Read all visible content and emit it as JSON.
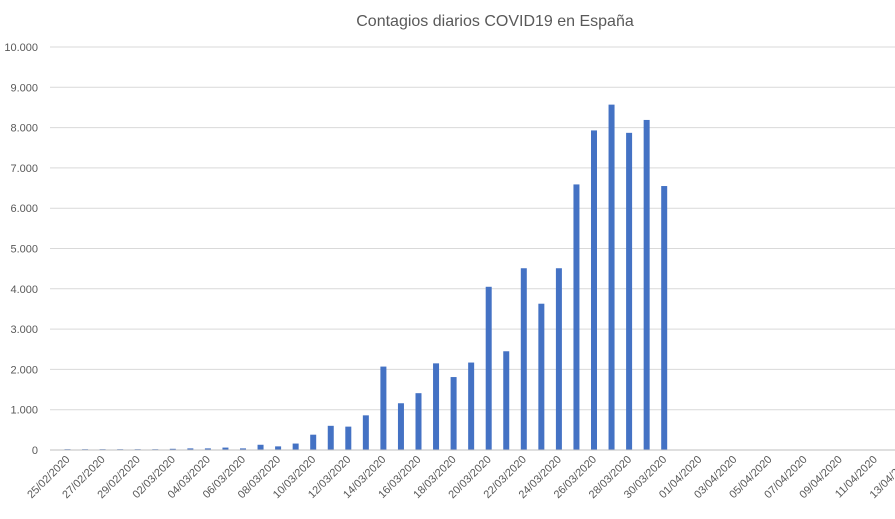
{
  "chart_data": {
    "type": "bar",
    "title": "Contagios diarios COVID19 en España",
    "xlabel": "",
    "ylabel": "",
    "ylim": [
      0,
      10000
    ],
    "yticks": [
      "0",
      "1.000",
      "2.000",
      "3.000",
      "4.000",
      "5.000",
      "6.000",
      "7.000",
      "8.000",
      "9.000",
      "10.000"
    ],
    "grid": true,
    "legend": "none",
    "bar_color": "#4472c4",
    "categories": [
      "25/02/2020",
      "26/02/2020",
      "27/02/2020",
      "28/02/2020",
      "29/02/2020",
      "01/03/2020",
      "02/03/2020",
      "03/03/2020",
      "04/03/2020",
      "05/03/2020",
      "06/03/2020",
      "07/03/2020",
      "08/03/2020",
      "09/03/2020",
      "10/03/2020",
      "11/03/2020",
      "12/03/2020",
      "13/03/2020",
      "14/03/2020",
      "15/03/2020",
      "16/03/2020",
      "17/03/2020",
      "18/03/2020",
      "19/03/2020",
      "20/03/2020",
      "21/03/2020",
      "22/03/2020",
      "23/03/2020",
      "24/03/2020",
      "25/03/2020",
      "26/03/2020",
      "27/03/2020",
      "28/03/2020",
      "29/03/2020",
      "30/03/2020",
      "31/03/2020",
      "01/04/2020",
      "02/04/2020",
      "03/04/2020",
      "04/04/2020",
      "05/04/2020",
      "06/04/2020",
      "07/04/2020",
      "08/04/2020",
      "09/04/2020",
      "10/04/2020",
      "11/04/2020",
      "12/04/2020",
      "13/04/2020"
    ],
    "xtick_labels": [
      "25/02/2020",
      "27/02/2020",
      "29/02/2020",
      "02/03/2020",
      "04/03/2020",
      "06/03/2020",
      "08/03/2020",
      "10/03/2020",
      "12/03/2020",
      "14/03/2020",
      "16/03/2020",
      "18/03/2020",
      "20/03/2020",
      "22/03/2020",
      "24/03/2020",
      "26/03/2020",
      "28/03/2020",
      "30/03/2020",
      "01/04/2020",
      "03/04/2020",
      "05/04/2020",
      "07/04/2020",
      "09/04/2020",
      "11/04/2020",
      "13/04/2020"
    ],
    "values": [
      0,
      0,
      0,
      0,
      0,
      0,
      30,
      40,
      40,
      60,
      40,
      130,
      90,
      160,
      380,
      600,
      580,
      860,
      2070,
      1160,
      1410,
      2150,
      1810,
      2170,
      4050,
      2450,
      4510,
      3630,
      4510,
      6590,
      7930,
      8570,
      7870,
      8190,
      6550,
      null,
      null,
      null,
      null,
      null,
      null,
      null,
      null,
      null,
      null,
      null,
      null,
      null,
      null
    ]
  }
}
